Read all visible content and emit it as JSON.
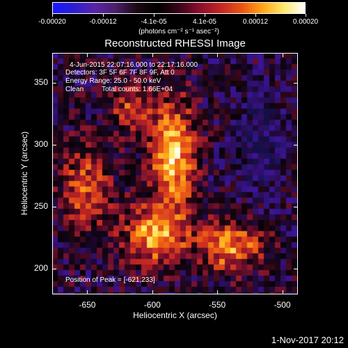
{
  "colorbar": {
    "tick_labels": [
      "-0.00020",
      "-0.00012",
      "-4.1e-05",
      "4.1e-05",
      "0.00012",
      "0.00020"
    ],
    "units": "(photons cm⁻² s⁻¹ asec⁻²)",
    "colormap": [
      "#1818ff",
      "#2a1fd0",
      "#5a24a8",
      "#4a1f6a",
      "#1a0812",
      "#000000",
      "#3a0418",
      "#8a0f2e",
      "#c22525",
      "#ec5310",
      "#ffa616",
      "#ffe96a",
      "#ffffff"
    ]
  },
  "plot": {
    "title": "Reconstructed RHESSI Image",
    "xlabel": "Heliocentric X (arcsec)",
    "ylabel": "Heliocentric Y (arcsec)",
    "x_ticks": [
      "-650",
      "-600",
      "-550",
      "-500"
    ],
    "y_ticks": [
      "350",
      "300",
      "250",
      "200"
    ],
    "xlim": [
      -677,
      -488
    ],
    "ylim": [
      179,
      374
    ],
    "peak_x": -621,
    "peak_y": 233
  },
  "overlay": {
    "line1": "4-Jun-2015 22:07:16.000 to 22:17:16.000",
    "line2": "Detectors: 3F 5F 6F 7F 8F 9F, Att 0",
    "line3": "Energy Range: 25.0 - 50.0 keV",
    "line4_left": "Clean",
    "line4_right": "Total counts: 1.66E+04",
    "peak": "Position of Peak = [-621,233]"
  },
  "footer": {
    "timestamp": "1-Nov-2017 20:12"
  }
}
